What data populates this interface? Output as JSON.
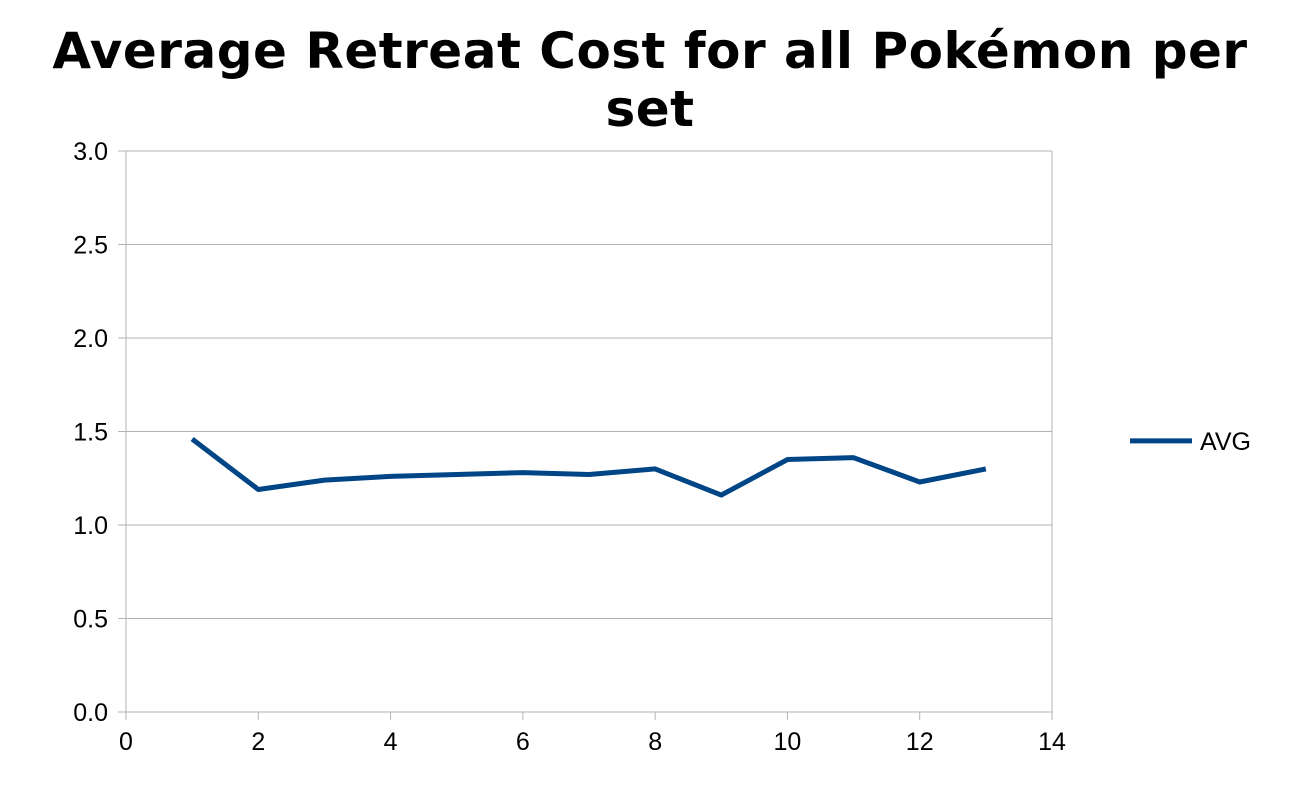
{
  "chart_data": {
    "type": "line",
    "title": "Average Retreat Cost for all Pokémon per set",
    "xlabel": "",
    "ylabel": "",
    "xlim": [
      0,
      14
    ],
    "ylim": [
      0,
      3
    ],
    "x_ticks": [
      0,
      2,
      4,
      6,
      8,
      10,
      12,
      14
    ],
    "x_tick_labels": [
      "0",
      "2",
      "4",
      "6",
      "8",
      "10",
      "12",
      "14"
    ],
    "y_ticks": [
      0,
      0.5,
      1,
      1.5,
      2,
      2.5,
      3
    ],
    "y_tick_labels": [
      "0.0",
      "0.5",
      "1.0",
      "1.5",
      "2.0",
      "2.5",
      "3.0"
    ],
    "grid": "horizontal",
    "legend_position": "right",
    "series": [
      {
        "name": "AVG",
        "color": "#004586",
        "x": [
          1,
          2,
          3,
          4,
          5,
          6,
          7,
          8,
          9,
          10,
          11,
          12,
          13
        ],
        "y": [
          1.46,
          1.19,
          1.24,
          1.26,
          1.27,
          1.28,
          1.27,
          1.3,
          1.16,
          1.35,
          1.36,
          1.23,
          1.3
        ]
      }
    ]
  }
}
